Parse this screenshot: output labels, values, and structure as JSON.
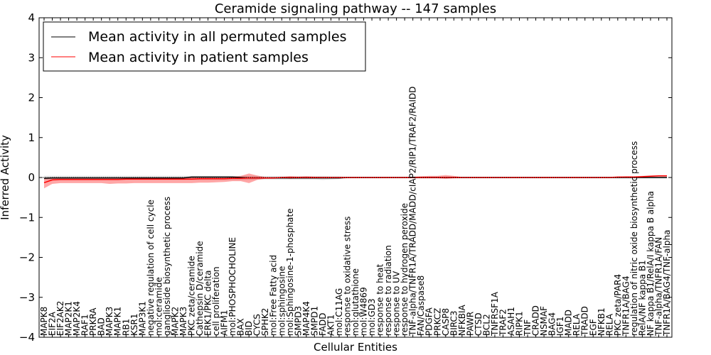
{
  "chart_data": {
    "type": "line",
    "title": "Ceramide signaling pathway -- 147 samples",
    "xlabel": "Cellular Entities",
    "ylabel": "Inferred Activity",
    "ylim": [
      -4,
      4
    ],
    "yticks": [
      -4,
      -3,
      -2,
      -1,
      0,
      1,
      2,
      3,
      4
    ],
    "grid": false,
    "legend_position": "top-left",
    "categories": [
      "MAPK8",
      "EIF2A",
      "EIF2AK2",
      "MAP2K1",
      "MAP2K4",
      "RAF1",
      "PRKRA",
      "BAD",
      "MAPK3",
      "MAPK1",
      "RB1",
      "KSR1",
      "MAP3K1",
      "negative regulation of cell cycle",
      "mol:ceramide",
      "ganglioside biosynthetic process",
      "MAPK2",
      "MAPK3",
      "PKC zeta/ceramide",
      "Cathepsin D/ceramide",
      "ERK1/PKC delta",
      "cell proliferation",
      "AIFM1",
      "mol:PHOSPHOCHOLINE",
      "BAX",
      "BID",
      "CYCS",
      "SPHK2",
      "mol:Free Fatty acid",
      "mol:sphingosine",
      "mol:Sphingosine-1-phosphate",
      "SMPD3",
      "MAP4K4",
      "SMPD1",
      "FADD",
      "AKT1",
      "mol:C11AG",
      "response to oxidative stress",
      "mol:glutathione",
      "mol:W4869",
      "mol:GD3",
      "response to heat",
      "response to radiation",
      "response to UV",
      "response to hydrogen peroxide",
      "TNF-alpha/TNFR1A/TRADD/MADD/cIAP2/RIP1/TRAF2/RAIDD",
      "FAN/Caspase8",
      "PDGFA",
      "PRKCZ",
      "CASP8",
      "BIRC3",
      "NFKBIA",
      "PAWR",
      "CTSD",
      "BCL2",
      "TNFRSF1A",
      "TRAF2",
      "ASAH1",
      "RIPK1",
      "TNF",
      "CRADD",
      "NSMAF",
      "BAG4",
      "IGF1",
      "MADD",
      "RELA",
      "TRADD",
      "EGF",
      "NFKB1",
      "RELA",
      "PKC zeta/PAR4",
      "TNFR1A/BAG4",
      "regulation of nitric oxide biosynthetic process",
      "RelA/NF kappa B1",
      "NF kappa B1/RelA/I kappa B alpha",
      "TNF-alpha/TNFR1A/FAN",
      "TNFR1A/BAG4/TNF-alpha"
    ],
    "series": [
      {
        "name": "Mean activity in all permuted samples",
        "color": "#000000",
        "values": [
          -0.02,
          -0.01,
          -0.01,
          -0.01,
          -0.01,
          -0.01,
          -0.01,
          -0.01,
          -0.01,
          -0.01,
          -0.01,
          -0.01,
          -0.01,
          -0.01,
          -0.01,
          -0.01,
          -0.01,
          -0.01,
          0.01,
          0.01,
          0.01,
          0.01,
          0.01,
          0.01,
          0.0,
          -0.01,
          -0.01,
          -0.01,
          -0.01,
          -0.01,
          -0.01,
          -0.01,
          -0.01,
          -0.01,
          -0.01,
          -0.01,
          -0.01,
          0.0,
          0.0,
          0.0,
          0.0,
          0.0,
          0.0,
          0.0,
          0.0,
          0.0,
          0.0,
          0.0,
          0.0,
          0.0,
          0.0,
          0.0,
          0.0,
          0.0,
          0.0,
          0.0,
          0.0,
          0.0,
          0.0,
          0.0,
          0.0,
          0.0,
          0.0,
          0.0,
          0.0,
          0.0,
          0.0,
          0.0,
          0.0,
          0.0,
          0.0,
          0.0,
          0.0,
          0.0,
          0.0,
          0.0,
          0.0
        ],
        "band_upper": [
          0.04,
          0.04,
          0.04,
          0.04,
          0.04,
          0.04,
          0.04,
          0.04,
          0.04,
          0.04,
          0.04,
          0.04,
          0.04,
          0.04,
          0.04,
          0.04,
          0.04,
          0.04,
          0.04,
          0.04,
          0.04,
          0.04,
          0.04,
          0.04,
          0.04,
          0.04,
          0.04,
          0.03,
          0.03,
          0.03,
          0.03,
          0.03,
          0.03,
          0.03,
          0.04,
          0.03,
          0.03,
          0.02,
          0.02,
          0.02,
          0.02,
          0.02,
          0.02,
          0.02,
          0.02,
          0.02,
          0.02,
          0.02,
          0.02,
          0.02,
          0.02,
          0.02,
          0.02,
          0.02,
          0.02,
          0.02,
          0.02,
          0.02,
          0.02,
          0.02,
          0.02,
          0.02,
          0.02,
          0.02,
          0.02,
          0.02,
          0.02,
          0.02,
          0.02,
          0.02,
          0.02,
          0.02,
          0.02,
          0.02,
          0.02,
          0.02,
          0.02
        ],
        "band_lower": [
          -0.06,
          -0.06,
          -0.06,
          -0.06,
          -0.06,
          -0.06,
          -0.06,
          -0.06,
          -0.06,
          -0.06,
          -0.06,
          -0.06,
          -0.06,
          -0.06,
          -0.06,
          -0.06,
          -0.06,
          -0.06,
          -0.06,
          -0.06,
          -0.06,
          -0.06,
          -0.06,
          -0.06,
          -0.06,
          -0.06,
          -0.05,
          -0.05,
          -0.05,
          -0.05,
          -0.05,
          -0.05,
          -0.05,
          -0.05,
          -0.06,
          -0.05,
          -0.04,
          -0.02,
          -0.02,
          -0.02,
          -0.02,
          -0.02,
          -0.02,
          -0.02,
          -0.02,
          -0.02,
          -0.02,
          -0.02,
          -0.02,
          -0.03,
          -0.02,
          -0.02,
          -0.02,
          -0.02,
          -0.02,
          -0.02,
          -0.02,
          -0.02,
          -0.02,
          -0.02,
          -0.02,
          -0.02,
          -0.02,
          -0.02,
          -0.02,
          -0.02,
          -0.02,
          -0.02,
          -0.02,
          -0.02,
          -0.02,
          -0.02,
          -0.02,
          -0.02,
          -0.02,
          -0.02,
          -0.02
        ]
      },
      {
        "name": "Mean activity in patient samples",
        "color": "#ff0000",
        "values": [
          -0.13,
          -0.06,
          -0.05,
          -0.05,
          -0.05,
          -0.05,
          -0.05,
          -0.05,
          -0.05,
          -0.05,
          -0.04,
          -0.04,
          -0.04,
          -0.04,
          -0.04,
          -0.04,
          -0.04,
          -0.04,
          -0.04,
          -0.03,
          -0.03,
          -0.03,
          -0.03,
          -0.02,
          -0.02,
          -0.01,
          -0.01,
          -0.01,
          -0.01,
          0.0,
          0.0,
          0.0,
          0.0,
          0.0,
          0.0,
          0.0,
          0.0,
          0.0,
          0.0,
          0.0,
          0.0,
          0.0,
          0.0,
          0.0,
          0.0,
          0.0,
          0.0,
          0.0,
          0.0,
          0.0,
          0.0,
          0.0,
          0.0,
          0.0,
          0.0,
          0.0,
          0.0,
          0.0,
          0.0,
          0.0,
          0.0,
          0.0,
          0.0,
          0.0,
          0.0,
          0.0,
          0.0,
          0.0,
          0.0,
          0.0,
          0.01,
          0.01,
          0.01,
          0.02,
          0.03,
          0.04,
          0.04
        ],
        "band_upper": [
          -0.02,
          -0.01,
          -0.01,
          -0.01,
          -0.01,
          -0.01,
          -0.01,
          -0.01,
          -0.01,
          -0.01,
          -0.01,
          -0.01,
          -0.01,
          -0.01,
          -0.01,
          -0.01,
          -0.01,
          0.0,
          0.0,
          0.01,
          0.01,
          0.01,
          0.01,
          0.02,
          0.04,
          0.1,
          0.05,
          0.01,
          0.01,
          0.01,
          0.03,
          0.02,
          0.03,
          0.02,
          0.01,
          0.01,
          0.01,
          0.01,
          0.01,
          0.01,
          0.01,
          0.01,
          0.01,
          0.01,
          0.01,
          0.02,
          0.03,
          0.04,
          0.04,
          0.06,
          0.04,
          0.01,
          0.01,
          0.01,
          0.01,
          0.01,
          0.01,
          0.01,
          0.01,
          0.01,
          0.01,
          0.01,
          0.01,
          0.01,
          0.01,
          0.01,
          0.01,
          0.01,
          0.01,
          0.01,
          0.02,
          0.03,
          0.03,
          0.04,
          0.05,
          0.06,
          0.06
        ],
        "band_lower": [
          -0.27,
          -0.16,
          -0.14,
          -0.14,
          -0.14,
          -0.14,
          -0.14,
          -0.14,
          -0.16,
          -0.15,
          -0.15,
          -0.14,
          -0.14,
          -0.14,
          -0.14,
          -0.14,
          -0.14,
          -0.14,
          -0.14,
          -0.13,
          -0.13,
          -0.12,
          -0.11,
          -0.09,
          -0.09,
          -0.14,
          -0.06,
          -0.03,
          -0.03,
          -0.01,
          -0.03,
          -0.02,
          -0.02,
          -0.02,
          -0.01,
          -0.01,
          -0.01,
          -0.01,
          -0.01,
          -0.01,
          -0.01,
          -0.01,
          -0.01,
          -0.01,
          -0.01,
          -0.01,
          -0.02,
          -0.02,
          -0.02,
          -0.03,
          -0.02,
          -0.01,
          -0.01,
          -0.01,
          -0.01,
          -0.01,
          -0.01,
          -0.01,
          -0.01,
          -0.01,
          -0.01,
          -0.01,
          -0.01,
          -0.01,
          -0.01,
          -0.01,
          -0.01,
          -0.01,
          -0.01,
          -0.01,
          0.0,
          0.0,
          0.0,
          0.0,
          0.02,
          0.03,
          0.03
        ]
      }
    ]
  }
}
